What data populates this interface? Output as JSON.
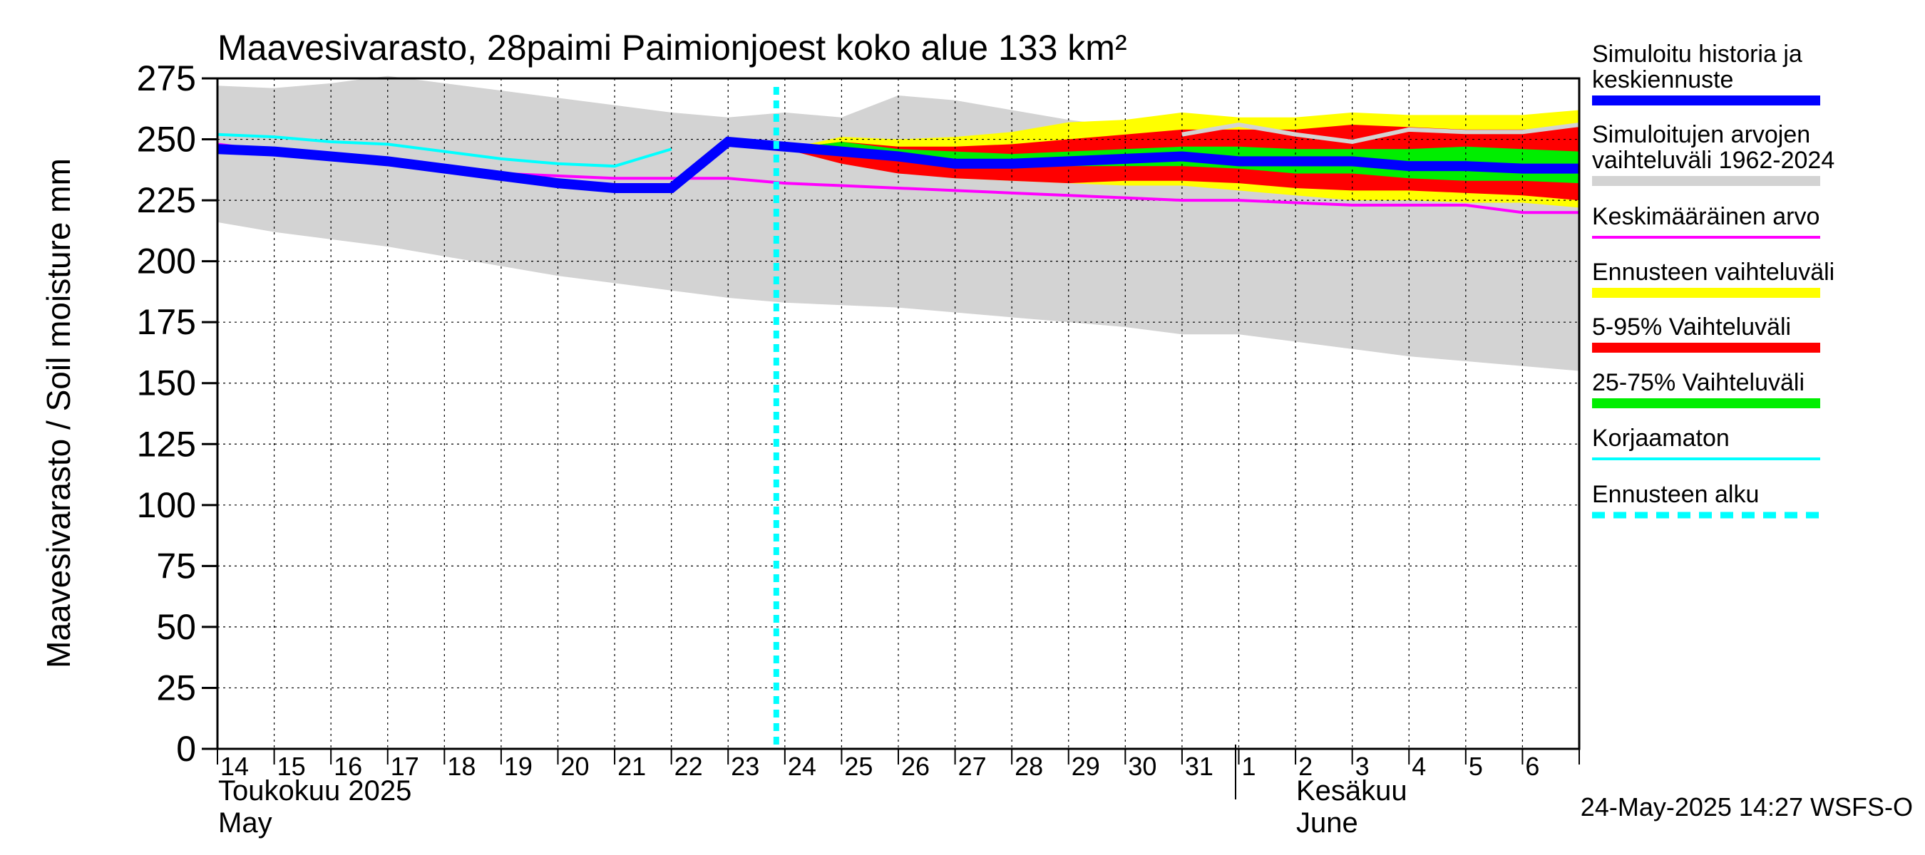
{
  "chart_data": {
    "type": "area",
    "title": "Maavesivarasto, 28paimi Paimionjoest koko alue 133 km²",
    "ylabel": "Maavesivarasto / Soil moisture   mm",
    "ylim": [
      0,
      275
    ],
    "yticks": [
      0,
      25,
      50,
      75,
      100,
      125,
      150,
      175,
      200,
      225,
      250,
      275
    ],
    "grid": true,
    "x_day_labels": [
      "14",
      "15",
      "16",
      "17",
      "18",
      "19",
      "20",
      "21",
      "22",
      "23",
      "24",
      "25",
      "26",
      "27",
      "28",
      "29",
      "30",
      "31",
      "1",
      "2",
      "3",
      "4",
      "5",
      "6"
    ],
    "x_axis_text": {
      "month1_fi": "Toukokuu  2025",
      "month1_en": "May",
      "month2_fi": "Kesäkuu",
      "month2_en": "June"
    },
    "forecast_start_day_index": 10,
    "footer_timestamp": "24-May-2025 14:27 WSFS-O",
    "legend": [
      {
        "label": "Simuloitu historia ja keskiennuste",
        "color": "#0000ff",
        "style": "thick"
      },
      {
        "label": "Simuloitujen arvojen vaihteluväli 1962-2024",
        "color": "#d3d3d3",
        "style": "thick"
      },
      {
        "label": "Keskimääräinen arvo",
        "color": "#ff00ff",
        "style": "thin"
      },
      {
        "label": "Ennusteen vaihteluväli",
        "color": "#ffff00",
        "style": "thick"
      },
      {
        "label": "5-95% Vaihteluväli",
        "color": "#ff0000",
        "style": "thick"
      },
      {
        "label": "25-75% Vaihteluväli",
        "color": "#00ee00",
        "style": "thick"
      },
      {
        "label": "Korjaamaton",
        "color": "#00ffff",
        "style": "thin"
      },
      {
        "label": "Ennusteen alku",
        "color": "#00ffff",
        "style": "dashed"
      }
    ],
    "series": {
      "hist_range": {
        "name": "Simuloitujen arvojen vaihteluväli 1962-2024",
        "x": [
          0,
          1,
          2,
          3,
          4,
          5,
          6,
          7,
          8,
          9,
          10,
          11,
          12,
          13,
          14,
          15,
          16,
          17,
          18,
          19,
          20,
          21,
          22,
          23,
          24
        ],
        "upper": [
          272,
          271,
          273,
          276,
          273,
          270,
          267,
          264,
          261,
          259,
          261,
          259,
          268,
          266,
          262,
          258,
          255,
          254,
          253,
          254,
          256,
          257,
          257,
          258,
          258
        ],
        "lower": [
          216,
          212,
          209,
          206,
          202,
          198,
          194,
          191,
          188,
          185,
          183,
          182,
          181,
          179,
          177,
          175,
          173,
          170,
          170,
          167,
          164,
          161,
          159,
          157,
          155
        ]
      },
      "forecast_range": {
        "name": "Ennusteen vaihteluväli",
        "x": [
          10,
          11,
          12,
          13,
          14,
          15,
          16,
          17,
          18,
          19,
          20,
          21,
          22,
          23,
          24
        ],
        "upper": [
          246,
          251,
          250,
          251,
          253,
          257,
          258,
          261,
          259,
          259,
          261,
          260,
          260,
          260,
          262
        ],
        "lower": [
          246,
          241,
          237,
          234,
          233,
          232,
          231,
          231,
          229,
          227,
          225,
          225,
          224,
          224,
          222
        ]
      },
      "p5_95": {
        "name": "5-95% Vaihteluväli",
        "x": [
          10,
          11,
          12,
          13,
          14,
          15,
          16,
          17,
          18,
          19,
          20,
          21,
          22,
          23,
          24
        ],
        "upper": [
          246,
          249,
          247,
          247,
          248,
          250,
          252,
          254,
          254,
          254,
          256,
          255,
          254,
          254,
          255
        ],
        "lower": [
          246,
          240,
          236,
          234,
          233,
          232,
          233,
          233,
          232,
          230,
          229,
          229,
          228,
          227,
          225
        ]
      },
      "p25_75": {
        "name": "25-75% Vaihteluväli",
        "x": [
          10,
          11,
          12,
          13,
          14,
          15,
          16,
          17,
          18,
          19,
          20,
          21,
          22,
          23,
          24
        ],
        "upper": [
          246,
          249,
          246,
          245,
          244,
          245,
          246,
          247,
          247,
          246,
          246,
          246,
          247,
          246,
          245
        ],
        "lower": [
          246,
          245,
          242,
          239,
          239,
          239,
          239,
          239,
          238,
          236,
          236,
          234,
          233,
          233,
          232
        ]
      },
      "hist_max_line": {
        "name": "Simuloitujen arvojen vaihteluväli 1962-2024 (max)",
        "x": [
          17,
          18,
          19,
          20,
          21,
          22,
          23,
          24
        ],
        "y": [
          252,
          256,
          252,
          249,
          254,
          253,
          253,
          256
        ]
      },
      "mean": {
        "name": "Keskimääräinen arvo",
        "x": [
          0,
          1,
          2,
          3,
          4,
          5,
          6,
          7,
          8,
          9,
          10,
          11,
          12,
          13,
          14,
          15,
          16,
          17,
          18,
          19,
          20,
          21,
          22,
          23,
          24
        ],
        "y": [
          248,
          245,
          243,
          241,
          238,
          236,
          235,
          234,
          234,
          234,
          232,
          231,
          230,
          229,
          228,
          227,
          226,
          225,
          225,
          224,
          223,
          223,
          223,
          220,
          220
        ]
      },
      "uncorrected": {
        "name": "Korjaamaton",
        "x": [
          0,
          1,
          2,
          3,
          4,
          5,
          6,
          7,
          8
        ],
        "y": [
          252,
          251,
          249,
          248,
          245,
          242,
          240,
          239,
          246
        ]
      },
      "simulated_median": {
        "name": "Simuloitu historia ja keskiennuste",
        "x": [
          0,
          1,
          2,
          3,
          4,
          5,
          6,
          7,
          8,
          9,
          10,
          11,
          12,
          13,
          14,
          15,
          16,
          17,
          18,
          19,
          20,
          21,
          22,
          23,
          24
        ],
        "y": [
          246,
          245,
          243,
          241,
          238,
          235,
          232,
          230,
          230,
          249,
          247,
          245,
          243,
          240,
          240,
          241,
          242,
          243,
          241,
          241,
          241,
          239,
          239,
          238,
          238
        ]
      }
    }
  }
}
